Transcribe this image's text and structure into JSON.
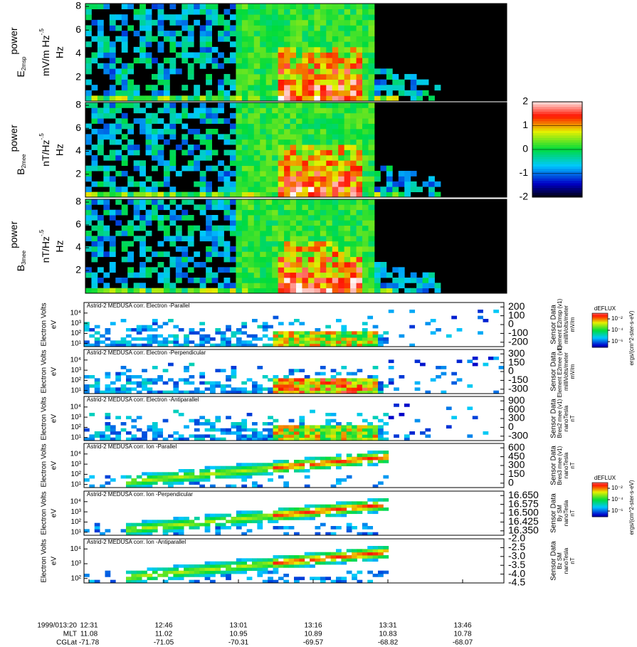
{
  "top_panels": [
    {
      "quantity": "E",
      "subscript": "2msp",
      "power": "power",
      "units": "mV/m Hz",
      "exponent": "-.5",
      "per": "Hz"
    },
    {
      "quantity": "B",
      "subscript": "2mee",
      "power": "power",
      "units": "nT/Hz",
      "exponent": "-.5",
      "per": "Hz"
    },
    {
      "quantity": "B",
      "subscript": "3mee",
      "power": "power",
      "units": "nT/Hz",
      "exponent": "-.5",
      "per": "Hz"
    }
  ],
  "top_ylim": [
    0,
    8
  ],
  "top_yticks": [
    2,
    4,
    6,
    8
  ],
  "colorbar": {
    "lim": [
      -2,
      2
    ],
    "ticks": [
      2,
      1,
      0,
      -1,
      -2
    ]
  },
  "lower_panels": [
    {
      "title": "Astrid-2 MEDUSA corr. Electron -Parallel",
      "ylabel": [
        "Electron Volts",
        "eV"
      ],
      "ylim": [
        5,
        30000
      ],
      "yticks": [
        {
          "value": 10000,
          "label": "10⁴"
        },
        {
          "value": 1000,
          "label": "10³"
        },
        {
          "value": 100,
          "label": "10²"
        },
        {
          "value": 10,
          "label": "10¹"
        }
      ],
      "y2lim": [
        -250,
        250
      ],
      "y2ticks": [
        200,
        100,
        0,
        -100,
        -200
      ],
      "sensor": [
        "Sensor Data",
        "Element E2msp (v1)",
        "milliVolts/meter",
        "mV/m"
      ]
    },
    {
      "title": "Astrid-2 MEDUSA corr. Electron -Perpendicular",
      "ylabel": [
        "Electron Volts",
        "eV"
      ],
      "ylim": [
        5,
        30000
      ],
      "yticks": [
        {
          "value": 10000,
          "label": "10⁴"
        },
        {
          "value": 1000,
          "label": "10³"
        },
        {
          "value": 100,
          "label": "10²"
        },
        {
          "value": 10,
          "label": "10¹"
        }
      ],
      "y2lim": [
        -375,
        375
      ],
      "y2ticks": [
        300,
        150,
        0,
        -150,
        -300
      ],
      "sensor": [
        "Sensor Data",
        "Element E2mee (v1)",
        "milliVolts/meter",
        "mV/m"
      ]
    },
    {
      "title": "Astrid-2 MEDUSA corr. Electron -Antiparallel",
      "ylabel": [
        "Electron Volts",
        "eV"
      ],
      "ylim": [
        5,
        30000
      ],
      "yticks": [
        {
          "value": 10000,
          "label": "10⁴"
        },
        {
          "value": 1000,
          "label": "10³"
        },
        {
          "value": 100,
          "label": "10²"
        },
        {
          "value": 10,
          "label": "10¹"
        }
      ],
      "y2lim": [
        -450,
        1050
      ],
      "y2ticks": [
        900,
        600,
        300,
        0,
        -300
      ],
      "sensor": [
        "Sensor Data",
        "Bres2 mee (v1)",
        "nanoTesla",
        "nT"
      ]
    },
    {
      "title": "Astrid-2 MEDUSA corr. Ion -Parallel",
      "ylabel": [
        "Electron Volts",
        "eV"
      ],
      "ylim": [
        5,
        30000
      ],
      "yticks": [
        {
          "value": 10000,
          "label": "10⁴"
        },
        {
          "value": 1000,
          "label": "10³"
        },
        {
          "value": 100,
          "label": "10²"
        },
        {
          "value": 10,
          "label": "10¹"
        }
      ],
      "y2lim": [
        -75,
        675
      ],
      "y2ticks": [
        600,
        450,
        300,
        150,
        0
      ],
      "sensor": [
        "Sensor Data",
        "Bres3 mee (v1)",
        "nanoTesla",
        "nT"
      ]
    },
    {
      "title": "Astrid-2 MEDUSA corr. Ion -Perpendicular",
      "ylabel": [
        "Electron Volts",
        "eV"
      ],
      "ylim": [
        5,
        30000
      ],
      "yticks": [
        {
          "value": 10000,
          "label": "10⁴"
        },
        {
          "value": 1000,
          "label": "10³"
        },
        {
          "value": 100,
          "label": "10²"
        },
        {
          "value": 10,
          "label": "10¹"
        }
      ],
      "y2lim": [
        16.3125,
        16.6875
      ],
      "y2ticks": [
        {
          "value": 16.65,
          "label": "16.650"
        },
        16.575,
        {
          "value": 16.5,
          "label": "16.500"
        },
        16.425,
        {
          "value": 16.35,
          "label": "16.350"
        }
      ],
      "sensor": [
        "Sensor Data",
        "By SM",
        "nanoTesla",
        "nT"
      ]
    },
    {
      "title": "Astrid-2 MEDUSA corr. Ion -Antiparallel",
      "ylabel": [
        "Electron Volts",
        "eV"
      ],
      "ylim": [
        50,
        20000
      ],
      "yticks": [
        {
          "value": 10000,
          "label": "10⁴"
        },
        {
          "value": 1000,
          "label": "10³"
        },
        {
          "value": 100,
          "label": "10²"
        }
      ],
      "y2lim": [
        -4.5,
        -2
      ],
      "y2ticks": [
        {
          "value": -2,
          "label": "-2.0"
        },
        -2.5,
        {
          "value": -3,
          "label": "-3.0"
        },
        -3.5,
        {
          "value": -4,
          "label": "-4.0"
        },
        -4.5
      ],
      "sensor": [
        "Sensor Data",
        "Bz SM",
        "nanoTesla",
        "nT"
      ]
    }
  ],
  "flux_colorbars": [
    {
      "title": "dEFLUX",
      "lim": [
        1e-07,
        0.1
      ],
      "ticks": [
        {
          "value": 0.01,
          "label": "10⁻²"
        },
        {
          "value": 0.0001,
          "label": "10⁻⁴"
        },
        {
          "value": 1e-06,
          "label": "10⁻⁶"
        }
      ],
      "units": "ergs/(cm^2-ster-s-eV)"
    },
    {
      "title": "dEFLUX",
      "lim": [
        1e-07,
        0.1
      ],
      "ticks": [
        {
          "value": 0.01,
          "label": "10⁻²"
        },
        {
          "value": 0.0001,
          "label": "10⁻⁴"
        },
        {
          "value": 1e-06,
          "label": "10⁻⁶"
        }
      ],
      "units": "ergs/(cm^2-ster-s-eV)"
    }
  ],
  "time_axis": {
    "rows": [
      {
        "label": "1999/013:20",
        "values": [
          "12:31",
          "12:46",
          "13:01",
          "13:16",
          "13:31",
          "13:46"
        ]
      },
      {
        "label": "MLT",
        "values": [
          11.08,
          11.02,
          10.95,
          10.89,
          10.83,
          10.78
        ]
      },
      {
        "label": "CGLat",
        "values": [
          -71.78,
          -71.05,
          -70.31,
          -69.57,
          -68.82,
          -68.07
        ]
      }
    ]
  }
}
